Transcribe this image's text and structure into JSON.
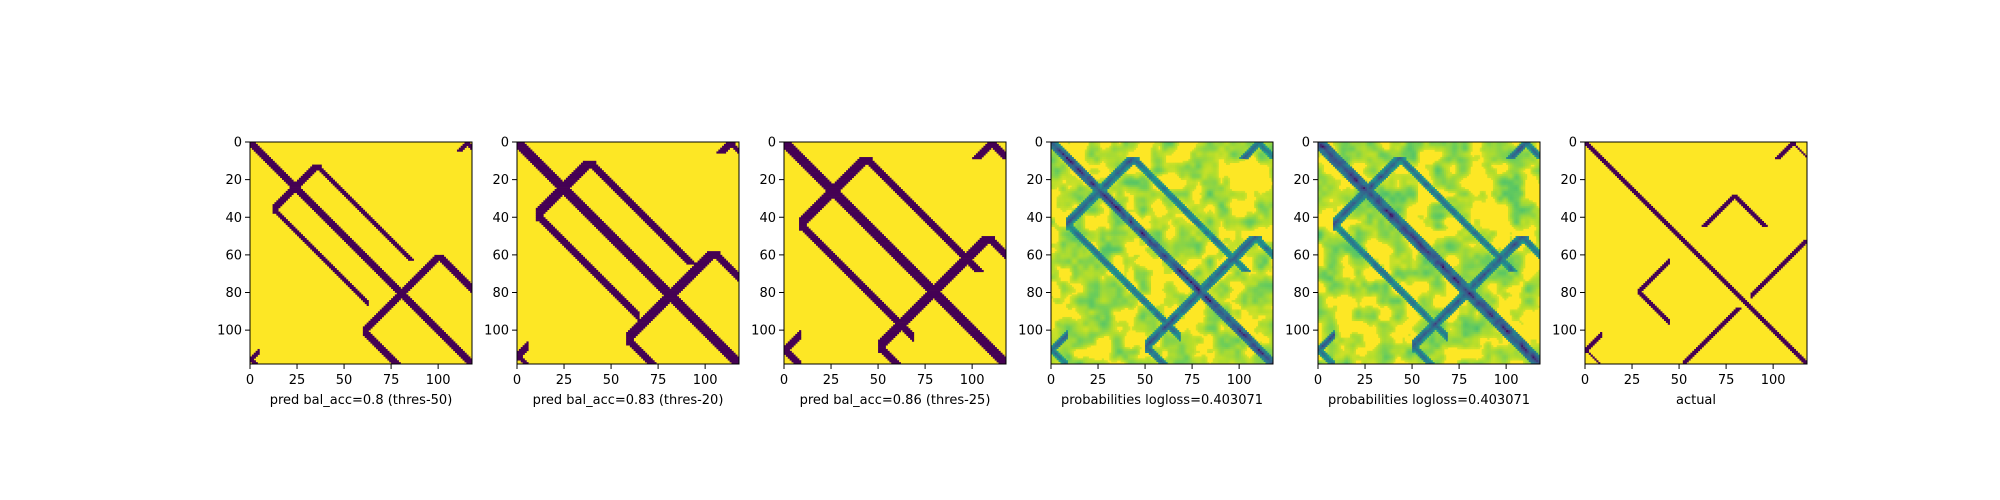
{
  "chart_data": [
    {
      "type": "heatmap",
      "variant": "binary",
      "xlabel": "pred bal_acc=0.8 (thres-50)",
      "xticks": [
        0,
        25,
        50,
        75,
        100
      ],
      "yticks": [
        0,
        20,
        40,
        60,
        80,
        100
      ],
      "xlim": [
        0,
        118
      ],
      "ylim": [
        118,
        0
      ],
      "n": 118,
      "colors": {
        "low": "#440154",
        "high": "#fde725"
      },
      "structure": {
        "diagonal_halfwidth": 2.2,
        "bands": [
          [
            12,
            62,
            35,
            0.16,
            2.4
          ],
          [
            60,
            87,
            100,
            0.2,
            2.6
          ],
          [
            0,
            4,
            115,
            0.12,
            1.5
          ]
        ]
      }
    },
    {
      "type": "heatmap",
      "variant": "binary",
      "xlabel": "pred bal_acc=0.83 (thres-20)",
      "xticks": [
        0,
        25,
        50,
        75,
        100
      ],
      "yticks": [
        0,
        20,
        40,
        60,
        80,
        100
      ],
      "xlim": [
        0,
        118
      ],
      "ylim": [
        118,
        0
      ],
      "n": 118,
      "colors": {
        "low": "#440154",
        "high": "#fde725"
      },
      "structure": {
        "diagonal_halfwidth": 3.2,
        "bands": [
          [
            10,
            64,
            38,
            0.18,
            3.2
          ],
          [
            58,
            90,
            104,
            0.22,
            3.2
          ],
          [
            0,
            5,
            113,
            0.14,
            2.0
          ]
        ]
      }
    },
    {
      "type": "heatmap",
      "variant": "binary",
      "xlabel": "pred bal_acc=0.86 (thres-25)",
      "xticks": [
        0,
        25,
        50,
        75,
        100
      ],
      "yticks": [
        0,
        20,
        40,
        60,
        80,
        100
      ],
      "xlim": [
        0,
        118
      ],
      "ylim": [
        118,
        0
      ],
      "n": 118,
      "colors": {
        "low": "#440154",
        "high": "#fde725"
      },
      "structure": {
        "diagonal_halfwidth": 3.8,
        "bands": [
          [
            8,
            68,
            43,
            0.22,
            3.6
          ],
          [
            50,
            98,
            108,
            0.24,
            3.6
          ],
          [
            0,
            8,
            110,
            0.18,
            2.6
          ]
        ]
      }
    },
    {
      "type": "heatmap",
      "variant": "probability",
      "xlabel": "probabilities logloss=0.403071",
      "xticks": [
        0,
        25,
        50,
        75,
        100
      ],
      "yticks": [
        0,
        20,
        40,
        60,
        80,
        100
      ],
      "xlim": [
        0,
        118
      ],
      "ylim": [
        118,
        0
      ],
      "n": 118,
      "colormap": "viridis_r",
      "structure": {
        "diagonal_halfwidth": 3.0,
        "bands": [
          [
            8,
            68,
            43,
            0.22,
            3.6
          ],
          [
            50,
            98,
            108,
            0.24,
            3.6
          ],
          [
            0,
            8,
            110,
            0.18,
            2.6
          ]
        ]
      }
    },
    {
      "type": "heatmap",
      "variant": "probability",
      "xlabel": "probabilities logloss=0.403071",
      "xticks": [
        0,
        25,
        50,
        75,
        100
      ],
      "yticks": [
        0,
        20,
        40,
        60,
        80,
        100
      ],
      "xlim": [
        0,
        118
      ],
      "ylim": [
        118,
        0
      ],
      "n": 118,
      "colormap": "viridis_r",
      "structure": {
        "diagonal_halfwidth": 4.0,
        "bands": [
          [
            8,
            68,
            43,
            0.22,
            3.6
          ],
          [
            50,
            98,
            108,
            0.24,
            3.6
          ],
          [
            0,
            8,
            110,
            0.18,
            2.6
          ]
        ]
      }
    },
    {
      "type": "heatmap",
      "variant": "binary",
      "xlabel": "actual",
      "xticks": [
        0,
        25,
        50,
        75,
        100
      ],
      "yticks": [
        0,
        20,
        40,
        60,
        80,
        100
      ],
      "xlim": [
        0,
        118
      ],
      "ylim": [
        118,
        0
      ],
      "n": 118,
      "colors": {
        "low": "#440154",
        "high": "#fde725"
      },
      "structure": {
        "diagonal_halfwidth": 1.6,
        "bands": [
          [
            28,
            44,
            79,
            0.1,
            1.6
          ],
          [
            52,
            84,
            117,
            0.12,
            1.6
          ],
          [
            0,
            8,
            110,
            0.1,
            1.2
          ]
        ]
      }
    }
  ]
}
